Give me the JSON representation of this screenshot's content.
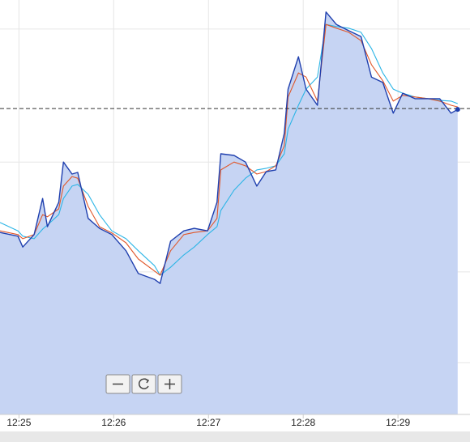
{
  "chart_data": {
    "type": "line",
    "x": [
      744.8,
      744.99,
      745.04,
      745.16,
      745.25,
      745.3,
      745.42,
      745.47,
      745.56,
      745.62,
      745.73,
      745.85,
      745.98,
      746.13,
      746.26,
      746.43,
      746.49,
      746.6,
      746.74,
      746.85,
      746.99,
      747.09,
      747.13,
      747.27,
      747.39,
      747.51,
      747.61,
      747.71,
      747.8,
      747.84,
      747.95,
      748.03,
      748.15,
      748.24,
      748.35,
      748.48,
      748.61,
      748.72,
      748.84,
      748.95,
      749.05,
      749.18,
      749.32,
      749.44,
      749.56,
      749.63
    ],
    "series": [
      {
        "color": "#1f3fae",
        "fill": "#c6d4f3",
        "values": [
          43.9,
          43.0,
          40.4,
          43.4,
          52.1,
          45.3,
          51.2,
          60.9,
          58.0,
          58.4,
          47.3,
          44.9,
          43.4,
          39.5,
          34.0,
          32.6,
          31.6,
          41.8,
          44.3,
          44.9,
          44.3,
          51.2,
          62.9,
          62.5,
          60.9,
          55.1,
          58.6,
          59.0,
          67.8,
          78.5,
          86.3,
          78.5,
          74.6,
          97.1,
          94.1,
          92.6,
          91.2,
          81.4,
          80.1,
          72.7,
          77.5,
          76.2,
          76.2,
          76.2,
          72.7,
          73.6
        ]
      },
      {
        "color": "#e0572a",
        "values": [
          44.3,
          43.4,
          42.4,
          43.4,
          48.2,
          47.7,
          49.6,
          55.1,
          57.4,
          57.0,
          50.2,
          45.3,
          43.8,
          41.4,
          37.5,
          34.6,
          33.6,
          39.5,
          43.4,
          43.9,
          44.3,
          47.3,
          59.0,
          60.9,
          60.0,
          58.0,
          58.6,
          60.0,
          64.8,
          76.6,
          82.4,
          81.4,
          75.6,
          94.1,
          93.2,
          92.2,
          90.2,
          84.4,
          80.5,
          75.6,
          77.0,
          76.6,
          76.2,
          75.6,
          74.6,
          74.2
        ]
      },
      {
        "color": "#2cb5e6",
        "values": [
          46.3,
          44.3,
          43.0,
          42.4,
          44.7,
          45.7,
          48.2,
          52.1,
          55.1,
          55.5,
          53.1,
          48.2,
          44.3,
          42.4,
          39.5,
          35.9,
          33.6,
          35.5,
          38.5,
          40.4,
          43.4,
          45.3,
          49.2,
          54.1,
          57.0,
          59.0,
          59.4,
          60.0,
          62.9,
          68.8,
          74.6,
          78.5,
          81.4,
          94.1,
          93.6,
          93.2,
          92.2,
          88.3,
          82.4,
          78.5,
          77.5,
          76.6,
          76.2,
          75.8,
          75.6,
          75.0
        ]
      }
    ],
    "reference_line": 73.8,
    "xlim": [
      744.8,
      749.76
    ],
    "ylim": [
      0,
      100
    ],
    "xticks": [
      {
        "value": 745,
        "label": "12:25"
      },
      {
        "value": 746,
        "label": "12:26"
      },
      {
        "value": 747,
        "label": "12:27"
      },
      {
        "value": 748,
        "label": "12:28"
      },
      {
        "value": 749,
        "label": "12:29"
      }
    ],
    "yticks": [
      12.5,
      34.4,
      60.9,
      93.0
    ],
    "grid": true
  }
}
